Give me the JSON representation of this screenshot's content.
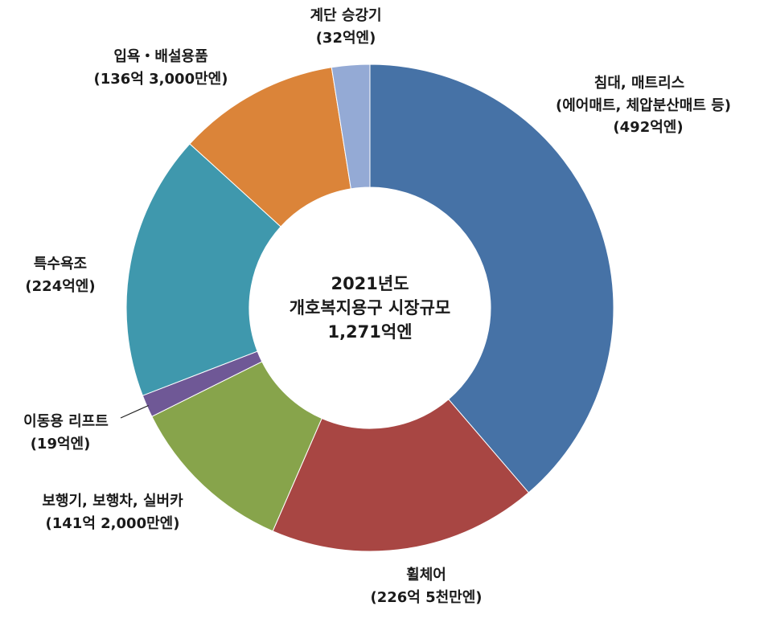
{
  "chart_data": {
    "type": "pie",
    "donut": true,
    "start": "top, clockwise",
    "center_text": [
      "2021년도",
      "개호복지용구 시장규모",
      "1,271억엔"
    ],
    "unit": "억엔",
    "slices": [
      {
        "label_lines": [
          "침대, 매트리스",
          "(에어매트, 체압분산매트 등)",
          "(492억엔)"
        ],
        "value": 492,
        "color": "#4672a6"
      },
      {
        "label_lines": [
          "휠체어",
          "(226억 5천만엔)"
        ],
        "value": 226.5,
        "color": "#a84643"
      },
      {
        "label_lines": [
          "보행기, 보행차, 실버카",
          "(141억 2,000만엔)"
        ],
        "value": 141.2,
        "color": "#87a44b"
      },
      {
        "label_lines": [
          "이동용 리프트",
          "(19억엔)"
        ],
        "value": 19,
        "color": "#6f5896"
      },
      {
        "label_lines": [
          "특수욕조",
          "(224억엔)"
        ],
        "value": 224,
        "color": "#3f98ad"
      },
      {
        "label_lines": [
          "입욕・배설용품",
          "(136억 3,000만엔)"
        ],
        "value": 136.3,
        "color": "#db8439"
      },
      {
        "label_lines": [
          "계단 승강기",
          "(32억엔)"
        ],
        "value": 32,
        "color": "#94aad5"
      }
    ]
  }
}
